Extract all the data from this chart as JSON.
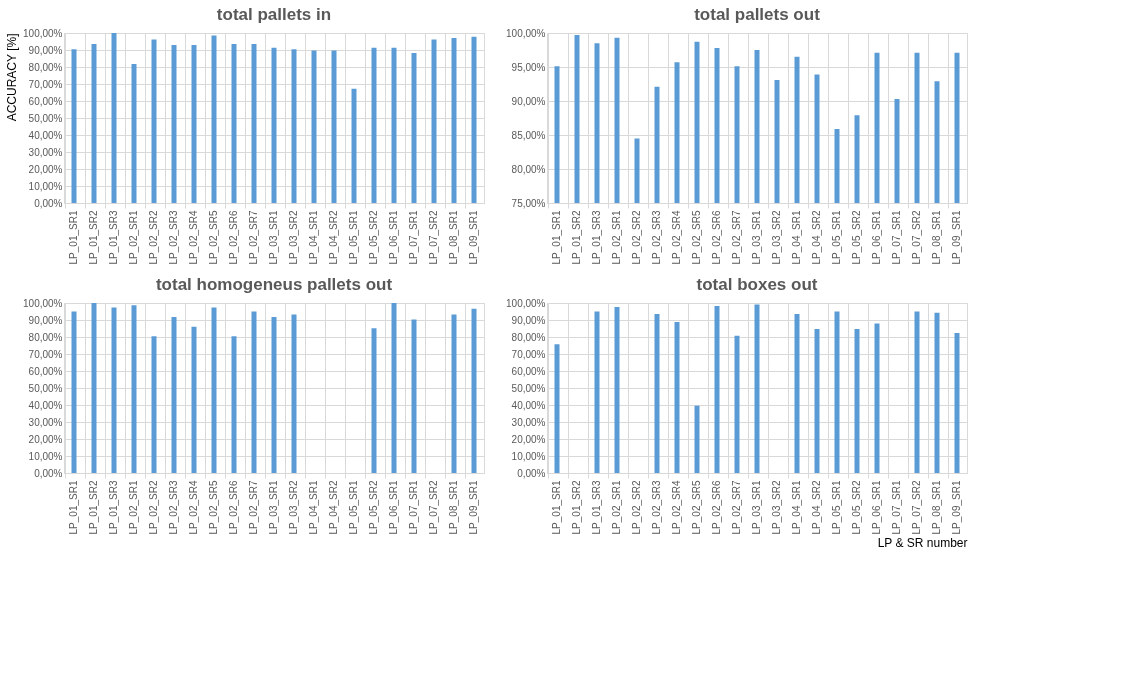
{
  "chart_data": [
    {
      "type": "bar",
      "title": "total pallets in",
      "ylabel": "ACCURACY [%]",
      "grid": true,
      "color": "#5b9bd5",
      "categories": [
        "LP_01_SR1",
        "LP_01_SR2",
        "LP_01_SR3",
        "LP_02_SR1",
        "LP_02_SR2",
        "LP_02_SR3",
        "LP_02_SR4",
        "LP_02_SR5",
        "LP_02_SR6",
        "LP_02_SR7",
        "LP_03_SR1",
        "LP_03_SR2",
        "LP_04_SR1",
        "LP_04_SR2",
        "LP_05_SR1",
        "LP_05_SR2",
        "LP_06_SR1",
        "LP_07_SR1",
        "LP_07_SR2",
        "LP_08_SR1",
        "LP_09_SR1"
      ],
      "values": [
        90.5,
        93.6,
        100,
        81.7,
        96.2,
        92.9,
        92.9,
        98.5,
        93.6,
        93.6,
        91.3,
        90.4,
        89.7,
        89.7,
        67.2,
        91.3,
        91.3,
        88.2,
        96.2,
        97.1,
        97.8
      ],
      "ylim": [
        0,
        100
      ],
      "yticks": [
        {
          "value": 0,
          "label": "0,00%"
        },
        {
          "value": 10,
          "label": "10,00%"
        },
        {
          "value": 20,
          "label": "20,00%"
        },
        {
          "value": 30,
          "label": "30,00%"
        },
        {
          "value": 40,
          "label": "40,00%"
        },
        {
          "value": 50,
          "label": "50,00%"
        },
        {
          "value": 60,
          "label": "60,00%"
        },
        {
          "value": 70,
          "label": "70,00%"
        },
        {
          "value": 80,
          "label": "80,00%"
        },
        {
          "value": 90,
          "label": "90,00%"
        },
        {
          "value": 100,
          "label": "100,00%"
        }
      ]
    },
    {
      "type": "bar",
      "title": "total pallets out",
      "grid": true,
      "color": "#5b9bd5",
      "categories": [
        "LP_01_SR1",
        "LP_01_SR2",
        "LP_01_SR3",
        "LP_02_SR1",
        "LP_02_SR2",
        "LP_02_SR3",
        "LP_02_SR4",
        "LP_02_SR5",
        "LP_02_SR6",
        "LP_02_SR7",
        "LP_03_SR1",
        "LP_03_SR2",
        "LP_04_SR1",
        "LP_04_SR2",
        "LP_05_SR1",
        "LP_05_SR2",
        "LP_06_SR1",
        "LP_07_SR1",
        "LP_07_SR2",
        "LP_08_SR1",
        "LP_09_SR1"
      ],
      "values": [
        95.1,
        99.7,
        98.5,
        99.3,
        84.5,
        92.1,
        95.7,
        98.7,
        97.8,
        95.1,
        97.5,
        93.1,
        96.5,
        93.9,
        85.9,
        87.9,
        97.1,
        90.3,
        97.1,
        92.9,
        97.1
      ],
      "ylim": [
        75,
        100
      ],
      "yticks": [
        {
          "value": 75,
          "label": "75,00%"
        },
        {
          "value": 80,
          "label": "80,00%"
        },
        {
          "value": 85,
          "label": "85,00%"
        },
        {
          "value": 90,
          "label": "90,00%"
        },
        {
          "value": 95,
          "label": "95,00%"
        },
        {
          "value": 100,
          "label": "100,00%"
        }
      ]
    },
    {
      "type": "bar",
      "title": "total homogeneus pallets out",
      "grid": true,
      "color": "#5b9bd5",
      "categories": [
        "LP_01_SR1",
        "LP_01_SR2",
        "LP_01_SR3",
        "LP_02_SR1",
        "LP_02_SR2",
        "LP_02_SR3",
        "LP_02_SR4",
        "LP_02_SR5",
        "LP_02_SR6",
        "LP_02_SR7",
        "LP_03_SR1",
        "LP_03_SR2",
        "LP_04_SR1",
        "LP_04_SR2",
        "LP_05_SR1",
        "LP_05_SR2",
        "LP_06_SR1",
        "LP_07_SR1",
        "LP_07_SR2",
        "LP_08_SR1",
        "LP_09_SR1"
      ],
      "values": [
        95.0,
        100,
        97.3,
        98.7,
        80.5,
        91.7,
        86.1,
        97.3,
        80.5,
        95.0,
        91.7,
        93.3,
        null,
        null,
        null,
        85.2,
        100,
        90.3,
        null,
        93.3,
        96.6
      ],
      "ylim": [
        0,
        100
      ],
      "yticks": [
        {
          "value": 0,
          "label": "0,00%"
        },
        {
          "value": 10,
          "label": "10,00%"
        },
        {
          "value": 20,
          "label": "20,00%"
        },
        {
          "value": 30,
          "label": "30,00%"
        },
        {
          "value": 40,
          "label": "40,00%"
        },
        {
          "value": 50,
          "label": "50,00%"
        },
        {
          "value": 60,
          "label": "60,00%"
        },
        {
          "value": 70,
          "label": "70,00%"
        },
        {
          "value": 80,
          "label": "80,00%"
        },
        {
          "value": 90,
          "label": "90,00%"
        },
        {
          "value": 100,
          "label": "100,00%"
        }
      ]
    },
    {
      "type": "bar",
      "title": "total boxes out",
      "xlabel": "LP & SR number",
      "grid": true,
      "color": "#5b9bd5",
      "categories": [
        "LP_01_SR1",
        "LP_01_SR2",
        "LP_01_SR3",
        "LP_02_SR1",
        "LP_02_SR2",
        "LP_02_SR3",
        "LP_02_SR4",
        "LP_02_SR5",
        "LP_02_SR6",
        "LP_02_SR7",
        "LP_03_SR1",
        "LP_03_SR2",
        "LP_04_SR1",
        "LP_04_SR2",
        "LP_05_SR1",
        "LP_05_SR2",
        "LP_06_SR1",
        "LP_07_SR1",
        "LP_07_SR2",
        "LP_08_SR1",
        "LP_09_SR1"
      ],
      "values": [
        75.7,
        null,
        95.0,
        97.6,
        null,
        93.6,
        88.8,
        39.6,
        98.3,
        80.7,
        99.1,
        null,
        93.6,
        84.7,
        95.0,
        84.7,
        88.0,
        null,
        95.0,
        94.3,
        82.3
      ],
      "ylim": [
        0,
        100
      ],
      "yticks": [
        {
          "value": 0,
          "label": "0,00%"
        },
        {
          "value": 10,
          "label": "10,00%"
        },
        {
          "value": 20,
          "label": "20,00%"
        },
        {
          "value": 30,
          "label": "30,00%"
        },
        {
          "value": 40,
          "label": "40,00%"
        },
        {
          "value": 50,
          "label": "50,00%"
        },
        {
          "value": 60,
          "label": "60,00%"
        },
        {
          "value": 70,
          "label": "70,00%"
        },
        {
          "value": 80,
          "label": "80,00%"
        },
        {
          "value": 90,
          "label": "90,00%"
        },
        {
          "value": 100,
          "label": "100,00%"
        }
      ]
    }
  ]
}
